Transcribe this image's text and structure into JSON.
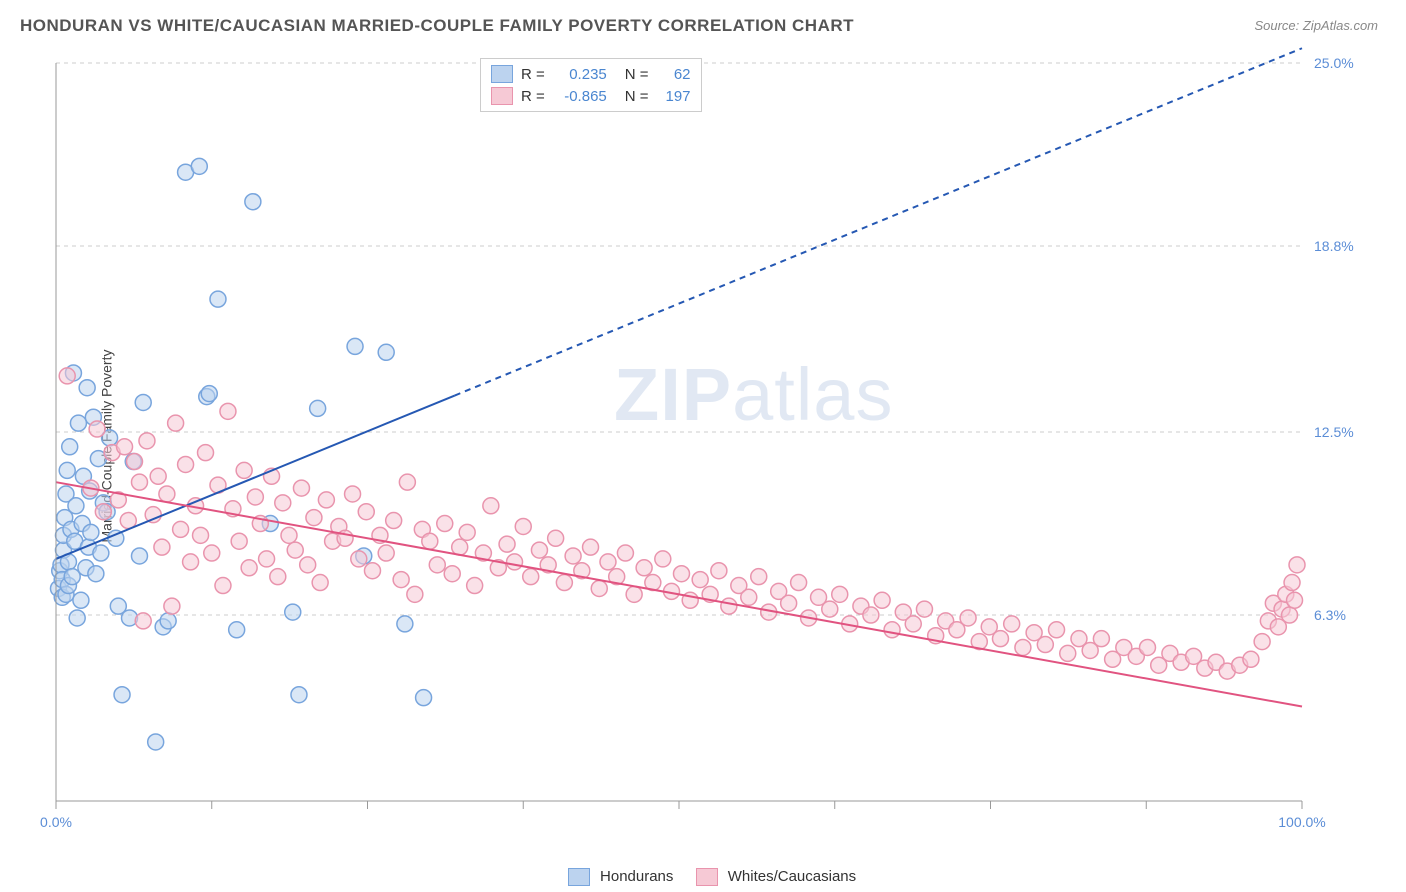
{
  "title": "HONDURAN VS WHITE/CAUCASIAN MARRIED-COUPLE FAMILY POVERTY CORRELATION CHART",
  "source_label": "Source: ZipAtlas.com",
  "ylabel": "Married-Couple Family Poverty",
  "watermark": {
    "part1": "ZIP",
    "part2": "atlas"
  },
  "chart": {
    "type": "scatter",
    "xlim": [
      0,
      100
    ],
    "ylim": [
      0,
      25
    ],
    "x_ticks": [
      0,
      12.5,
      25,
      37.5,
      50,
      62.5,
      75,
      87.5,
      100
    ],
    "x_tick_labels_shown": {
      "0": "0.0%",
      "100": "100.0%"
    },
    "y_grid": [
      6.3,
      12.5,
      18.8,
      25.0
    ],
    "y_grid_labels": [
      "6.3%",
      "12.5%",
      "18.8%",
      "25.0%"
    ],
    "background_color": "#ffffff",
    "grid_color": "#cccccc",
    "axis_color": "#999999",
    "tick_label_color": "#5b8dd6",
    "marker_radius": 8,
    "marker_stroke_width": 1.5,
    "series": [
      {
        "name": "Hondurans",
        "fill": "#bcd3ef",
        "stroke": "#78a5dd",
        "fill_opacity": 0.55,
        "R": "0.235",
        "N": "62",
        "trend": {
          "x1": 0,
          "y1": 8.2,
          "x2": 100,
          "y2": 25.5,
          "solid_until_x": 32,
          "color": "#2558b3",
          "dash": "6 5",
          "width": 2
        },
        "points": [
          [
            0.2,
            7.2
          ],
          [
            0.3,
            7.8
          ],
          [
            0.4,
            8.0
          ],
          [
            0.5,
            6.9
          ],
          [
            0.5,
            7.5
          ],
          [
            0.6,
            8.5
          ],
          [
            0.6,
            9.0
          ],
          [
            0.7,
            9.6
          ],
          [
            0.8,
            7.0
          ],
          [
            0.8,
            10.4
          ],
          [
            0.9,
            11.2
          ],
          [
            1.0,
            7.3
          ],
          [
            1.0,
            8.1
          ],
          [
            1.1,
            12.0
          ],
          [
            1.2,
            9.2
          ],
          [
            1.3,
            7.6
          ],
          [
            1.4,
            14.5
          ],
          [
            1.5,
            8.8
          ],
          [
            1.6,
            10.0
          ],
          [
            1.7,
            6.2
          ],
          [
            1.8,
            12.8
          ],
          [
            2.0,
            6.8
          ],
          [
            2.1,
            9.4
          ],
          [
            2.2,
            11.0
          ],
          [
            2.4,
            7.9
          ],
          [
            2.5,
            14.0
          ],
          [
            2.6,
            8.6
          ],
          [
            2.7,
            10.5
          ],
          [
            2.8,
            9.1
          ],
          [
            3.0,
            13.0
          ],
          [
            3.2,
            7.7
          ],
          [
            3.4,
            11.6
          ],
          [
            3.6,
            8.4
          ],
          [
            3.8,
            10.1
          ],
          [
            4.1,
            9.8
          ],
          [
            4.3,
            12.3
          ],
          [
            4.8,
            8.9
          ],
          [
            5.0,
            6.6
          ],
          [
            5.3,
            3.6
          ],
          [
            5.9,
            6.2
          ],
          [
            6.2,
            11.5
          ],
          [
            6.7,
            8.3
          ],
          [
            7.0,
            13.5
          ],
          [
            8.0,
            2.0
          ],
          [
            8.6,
            5.9
          ],
          [
            9.0,
            6.1
          ],
          [
            10.4,
            21.3
          ],
          [
            11.5,
            21.5
          ],
          [
            12.1,
            13.7
          ],
          [
            12.3,
            13.8
          ],
          [
            13.0,
            17.0
          ],
          [
            14.5,
            5.8
          ],
          [
            15.8,
            20.3
          ],
          [
            17.2,
            9.4
          ],
          [
            19.0,
            6.4
          ],
          [
            19.5,
            3.6
          ],
          [
            21.0,
            13.3
          ],
          [
            24.0,
            15.4
          ],
          [
            24.7,
            8.3
          ],
          [
            26.5,
            15.2
          ],
          [
            28.0,
            6.0
          ],
          [
            29.5,
            3.5
          ]
        ]
      },
      {
        "name": "Whites/Caucasians",
        "fill": "#f6c9d5",
        "stroke": "#e994ad",
        "fill_opacity": 0.55,
        "R": "-0.865",
        "N": "197",
        "trend": {
          "x1": 0,
          "y1": 10.8,
          "x2": 100,
          "y2": 3.2,
          "solid_until_x": 100,
          "color": "#e15380",
          "dash": "",
          "width": 2
        },
        "points": [
          [
            0.9,
            14.4
          ],
          [
            2.8,
            10.6
          ],
          [
            3.3,
            12.6
          ],
          [
            3.8,
            9.8
          ],
          [
            4.5,
            11.8
          ],
          [
            5.0,
            10.2
          ],
          [
            5.5,
            12.0
          ],
          [
            5.8,
            9.5
          ],
          [
            6.3,
            11.5
          ],
          [
            6.7,
            10.8
          ],
          [
            7.0,
            6.1
          ],
          [
            7.3,
            12.2
          ],
          [
            7.8,
            9.7
          ],
          [
            8.2,
            11.0
          ],
          [
            8.5,
            8.6
          ],
          [
            8.9,
            10.4
          ],
          [
            9.3,
            6.6
          ],
          [
            9.6,
            12.8
          ],
          [
            10.0,
            9.2
          ],
          [
            10.4,
            11.4
          ],
          [
            10.8,
            8.1
          ],
          [
            11.2,
            10.0
          ],
          [
            11.6,
            9.0
          ],
          [
            12.0,
            11.8
          ],
          [
            12.5,
            8.4
          ],
          [
            13.0,
            10.7
          ],
          [
            13.4,
            7.3
          ],
          [
            13.8,
            13.2
          ],
          [
            14.2,
            9.9
          ],
          [
            14.7,
            8.8
          ],
          [
            15.1,
            11.2
          ],
          [
            15.5,
            7.9
          ],
          [
            16.0,
            10.3
          ],
          [
            16.4,
            9.4
          ],
          [
            16.9,
            8.2
          ],
          [
            17.3,
            11.0
          ],
          [
            17.8,
            7.6
          ],
          [
            18.2,
            10.1
          ],
          [
            18.7,
            9.0
          ],
          [
            19.2,
            8.5
          ],
          [
            19.7,
            10.6
          ],
          [
            20.2,
            8.0
          ],
          [
            20.7,
            9.6
          ],
          [
            21.2,
            7.4
          ],
          [
            21.7,
            10.2
          ],
          [
            22.2,
            8.8
          ],
          [
            22.7,
            9.3
          ],
          [
            23.2,
            8.9
          ],
          [
            23.8,
            10.4
          ],
          [
            24.3,
            8.2
          ],
          [
            24.9,
            9.8
          ],
          [
            25.4,
            7.8
          ],
          [
            26.0,
            9.0
          ],
          [
            26.5,
            8.4
          ],
          [
            27.1,
            9.5
          ],
          [
            27.7,
            7.5
          ],
          [
            28.2,
            10.8
          ],
          [
            28.8,
            7.0
          ],
          [
            29.4,
            9.2
          ],
          [
            30.0,
            8.8
          ],
          [
            30.6,
            8.0
          ],
          [
            31.2,
            9.4
          ],
          [
            31.8,
            7.7
          ],
          [
            32.4,
            8.6
          ],
          [
            33.0,
            9.1
          ],
          [
            33.6,
            7.3
          ],
          [
            34.3,
            8.4
          ],
          [
            34.9,
            10.0
          ],
          [
            35.5,
            7.9
          ],
          [
            36.2,
            8.7
          ],
          [
            36.8,
            8.1
          ],
          [
            37.5,
            9.3
          ],
          [
            38.1,
            7.6
          ],
          [
            38.8,
            8.5
          ],
          [
            39.5,
            8.0
          ],
          [
            40.1,
            8.9
          ],
          [
            40.8,
            7.4
          ],
          [
            41.5,
            8.3
          ],
          [
            42.2,
            7.8
          ],
          [
            42.9,
            8.6
          ],
          [
            43.6,
            7.2
          ],
          [
            44.3,
            8.1
          ],
          [
            45.0,
            7.6
          ],
          [
            45.7,
            8.4
          ],
          [
            46.4,
            7.0
          ],
          [
            47.2,
            7.9
          ],
          [
            47.9,
            7.4
          ],
          [
            48.7,
            8.2
          ],
          [
            49.4,
            7.1
          ],
          [
            50.2,
            7.7
          ],
          [
            50.9,
            6.8
          ],
          [
            51.7,
            7.5
          ],
          [
            52.5,
            7.0
          ],
          [
            53.2,
            7.8
          ],
          [
            54.0,
            6.6
          ],
          [
            54.8,
            7.3
          ],
          [
            55.6,
            6.9
          ],
          [
            56.4,
            7.6
          ],
          [
            57.2,
            6.4
          ],
          [
            58.0,
            7.1
          ],
          [
            58.8,
            6.7
          ],
          [
            59.6,
            7.4
          ],
          [
            60.4,
            6.2
          ],
          [
            61.2,
            6.9
          ],
          [
            62.1,
            6.5
          ],
          [
            62.9,
            7.0
          ],
          [
            63.7,
            6.0
          ],
          [
            64.6,
            6.6
          ],
          [
            65.4,
            6.3
          ],
          [
            66.3,
            6.8
          ],
          [
            67.1,
            5.8
          ],
          [
            68.0,
            6.4
          ],
          [
            68.8,
            6.0
          ],
          [
            69.7,
            6.5
          ],
          [
            70.6,
            5.6
          ],
          [
            71.4,
            6.1
          ],
          [
            72.3,
            5.8
          ],
          [
            73.2,
            6.2
          ],
          [
            74.1,
            5.4
          ],
          [
            74.9,
            5.9
          ],
          [
            75.8,
            5.5
          ],
          [
            76.7,
            6.0
          ],
          [
            77.6,
            5.2
          ],
          [
            78.5,
            5.7
          ],
          [
            79.4,
            5.3
          ],
          [
            80.3,
            5.8
          ],
          [
            81.2,
            5.0
          ],
          [
            82.1,
            5.5
          ],
          [
            83.0,
            5.1
          ],
          [
            83.9,
            5.5
          ],
          [
            84.8,
            4.8
          ],
          [
            85.7,
            5.2
          ],
          [
            86.7,
            4.9
          ],
          [
            87.6,
            5.2
          ],
          [
            88.5,
            4.6
          ],
          [
            89.4,
            5.0
          ],
          [
            90.3,
            4.7
          ],
          [
            91.3,
            4.9
          ],
          [
            92.2,
            4.5
          ],
          [
            93.1,
            4.7
          ],
          [
            94.0,
            4.4
          ],
          [
            95.0,
            4.6
          ],
          [
            95.9,
            4.8
          ],
          [
            96.8,
            5.4
          ],
          [
            97.3,
            6.1
          ],
          [
            97.7,
            6.7
          ],
          [
            98.1,
            5.9
          ],
          [
            98.4,
            6.5
          ],
          [
            98.7,
            7.0
          ],
          [
            99.0,
            6.3
          ],
          [
            99.2,
            7.4
          ],
          [
            99.4,
            6.8
          ],
          [
            99.6,
            8.0
          ]
        ]
      }
    ]
  },
  "legend_top": {
    "r_label": "R =",
    "n_label": "N ="
  },
  "legend_bottom": {
    "series1": "Hondurans",
    "series2": "Whites/Caucasians"
  }
}
